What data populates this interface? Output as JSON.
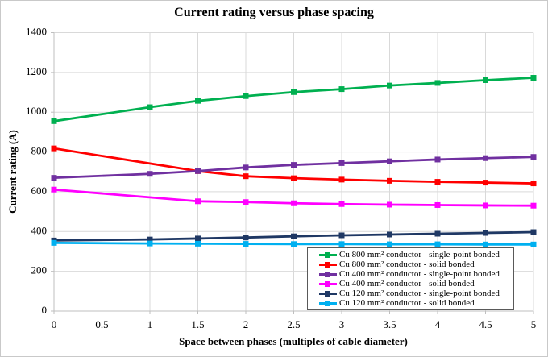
{
  "window": {
    "background": "#FFFFFF",
    "border_color": "#C9C9C9"
  },
  "chart_data": {
    "type": "line",
    "title": "Current rating versus phase spacing",
    "xlabel": "Space between phases (multiples of cable diameter)",
    "ylabel": "Current rating (A)",
    "xlim": [
      0,
      5
    ],
    "ylim": [
      0,
      1400
    ],
    "x_ticks": [
      "0",
      "0.5",
      "1",
      "1.5",
      "2",
      "2.5",
      "3",
      "3.5",
      "4",
      "4.5",
      "5"
    ],
    "y_ticks": [
      "0",
      "200",
      "400",
      "600",
      "800",
      "1000",
      "1200",
      "1400"
    ],
    "grid": true,
    "grid_color": "#D9D9D9",
    "axis_color": "#BFBFBF",
    "legend_position": "inside-bottom-right",
    "legend_border_color": "#595959",
    "marker_shape": "square",
    "series": [
      {
        "name": "Cu 800 mm² conductor - single-point bonded",
        "color": "#00B050",
        "x": [
          0,
          1,
          1.5,
          2,
          2.5,
          3,
          3.5,
          4,
          4.5,
          5
        ],
        "y": [
          955,
          1025,
          1057,
          1081,
          1101,
          1116,
          1134,
          1147,
          1161,
          1173
        ]
      },
      {
        "name": "Cu 800 mm² conductor - solid bonded",
        "color": "#FF0000",
        "x": [
          0,
          1.5,
          2,
          2.5,
          3,
          3.5,
          4,
          4.5,
          5
        ],
        "y": [
          818,
          704,
          678,
          668,
          661,
          655,
          650,
          646,
          642
        ]
      },
      {
        "name": "Cu 400 mm² conductor - single-point bonded",
        "color": "#7030A0",
        "x": [
          0,
          1,
          1.5,
          2,
          2.5,
          3,
          3.5,
          4,
          4.5,
          5
        ],
        "y": [
          670,
          690,
          704,
          722,
          735,
          744,
          753,
          762,
          769,
          775
        ]
      },
      {
        "name": "Cu 400 mm² conductor - solid bonded",
        "color": "#FF00FF",
        "x": [
          0,
          1.5,
          2,
          2.5,
          3,
          3.5,
          4,
          4.5,
          5
        ],
        "y": [
          611,
          552,
          548,
          542,
          538,
          535,
          533,
          531,
          530
        ]
      },
      {
        "name": "Cu 120 mm² conductor - single-point bonded",
        "color": "#1F3864",
        "x": [
          0,
          1,
          1.5,
          2,
          2.5,
          3,
          3.5,
          4,
          4.5,
          5
        ],
        "y": [
          355,
          360,
          365,
          370,
          376,
          381,
          385,
          389,
          393,
          397
        ]
      },
      {
        "name": "Cu 120 mm² conductor - solid bonded",
        "color": "#00B0F0",
        "x": [
          0,
          1,
          1.5,
          2,
          2.5,
          3,
          3.5,
          4,
          4.5,
          5
        ],
        "y": [
          343,
          340,
          339,
          338,
          337,
          337,
          336,
          336,
          335,
          335
        ]
      }
    ]
  }
}
